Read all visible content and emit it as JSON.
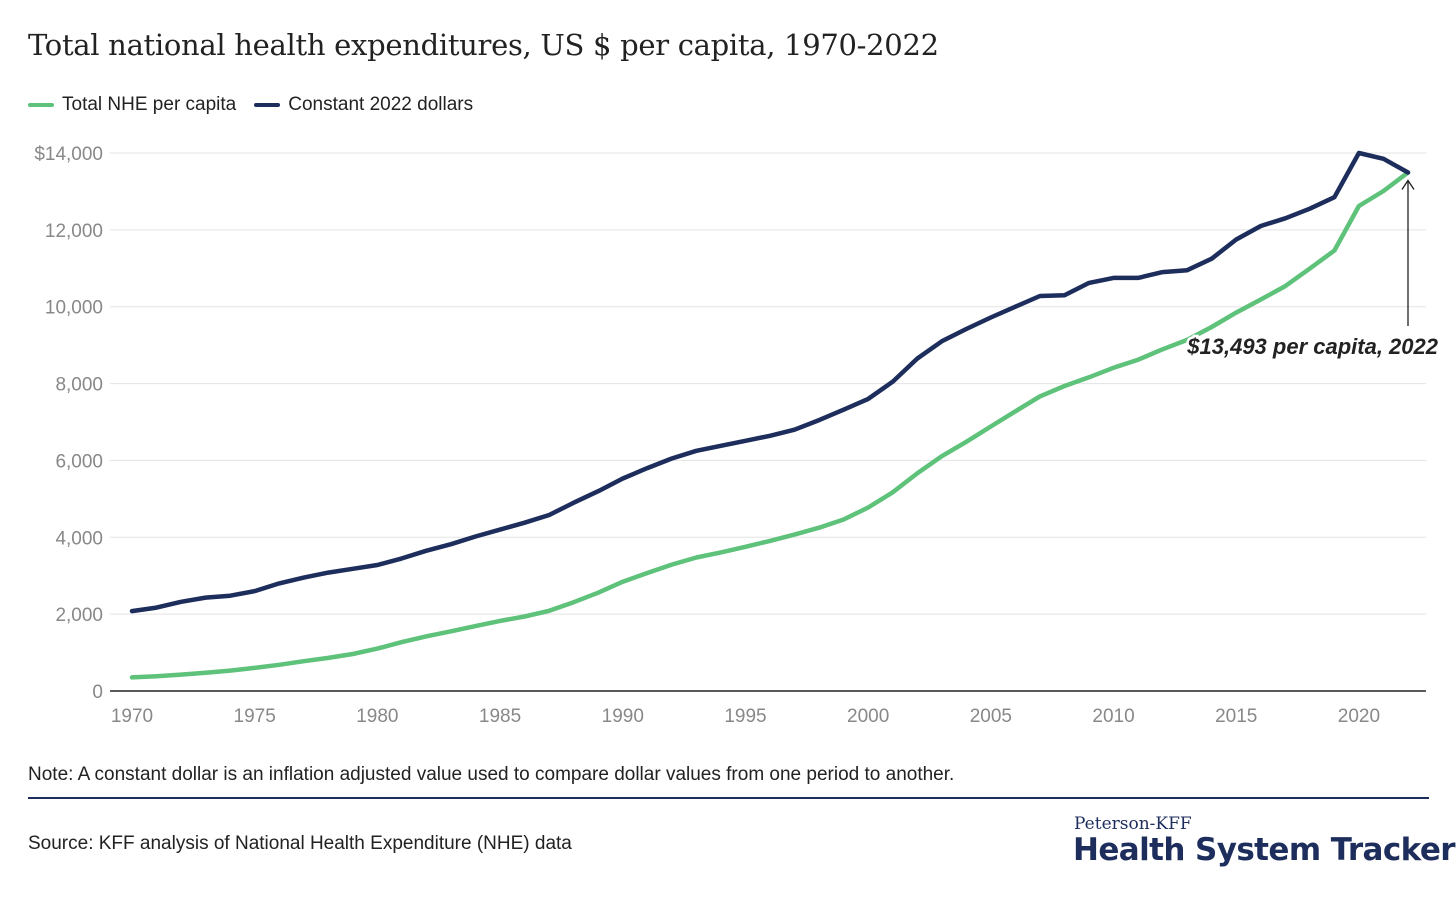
{
  "title": "Total national health expenditures, US $ per capita, 1970-2022",
  "note": "Note: A constant dollar is an inflation adjusted value used to compare dollar values from one period to another.",
  "source": "Source: KFF analysis of National Health Expenditure (NHE) data",
  "brand": {
    "top": "Peterson-KFF",
    "main": "Health System Tracker"
  },
  "colors": {
    "nominal": "#5ec27a",
    "constant": "#1d2d5c",
    "grid": "#e3e3e3",
    "axis": "#222222",
    "tick": "#888888"
  },
  "chart_data": {
    "type": "line",
    "title": "Total national health expenditures, US $ per capita, 1970-2022",
    "xlabel": "",
    "ylabel": "",
    "xlim": [
      1970,
      2022
    ],
    "ylim": [
      0,
      14000
    ],
    "yticks": [
      0,
      2000,
      4000,
      6000,
      8000,
      10000,
      12000,
      14000
    ],
    "ytick_labels": [
      "0",
      "2,000",
      "4,000",
      "6,000",
      "8,000",
      "10,000",
      "12,000",
      "$14,000"
    ],
    "xticks": [
      1970,
      1975,
      1980,
      1985,
      1990,
      1995,
      2000,
      2005,
      2010,
      2015,
      2020
    ],
    "xtick_labels": [
      "1970",
      "1975",
      "1980",
      "1985",
      "1990",
      "1995",
      "2000",
      "2005",
      "2010",
      "2015",
      "2020"
    ],
    "grid": true,
    "legend_position": "top-left",
    "x": [
      1970,
      1971,
      1972,
      1973,
      1974,
      1975,
      1976,
      1977,
      1978,
      1979,
      1980,
      1981,
      1982,
      1983,
      1984,
      1985,
      1986,
      1987,
      1988,
      1989,
      1990,
      1991,
      1992,
      1993,
      1994,
      1995,
      1996,
      1997,
      1998,
      1999,
      2000,
      2001,
      2002,
      2003,
      2004,
      2005,
      2006,
      2007,
      2008,
      2009,
      2010,
      2011,
      2012,
      2013,
      2014,
      2015,
      2016,
      2017,
      2018,
      2019,
      2020,
      2021,
      2022
    ],
    "series": [
      {
        "name": "Total NHE per capita",
        "color": "#5ec27a",
        "values": [
          353,
          384,
          428,
          474,
          530,
          601,
          683,
          776,
          861,
          964,
          1103,
          1272,
          1424,
          1553,
          1689,
          1825,
          1938,
          2087,
          2311,
          2559,
          2843,
          3071,
          3290,
          3473,
          3607,
          3753,
          3906,
          4071,
          4249,
          4463,
          4776,
          5170,
          5663,
          6109,
          6485,
          6883,
          7279,
          7665,
          7937,
          8162,
          8410,
          8622,
          8893,
          9136,
          9471,
          9848,
          10189,
          10537,
          10991,
          11462,
          12622,
          13012,
          13493
        ]
      },
      {
        "name": "Constant 2022 dollars",
        "color": "#1d2d5c",
        "values": [
          2080,
          2170,
          2320,
          2430,
          2480,
          2600,
          2800,
          2950,
          3080,
          3180,
          3280,
          3450,
          3650,
          3820,
          4020,
          4200,
          4380,
          4580,
          4900,
          5200,
          5530,
          5800,
          6050,
          6250,
          6380,
          6510,
          6640,
          6800,
          7050,
          7320,
          7600,
          8050,
          8650,
          9100,
          9420,
          9720,
          10000,
          10280,
          10300,
          10620,
          10750,
          10750,
          10900,
          10950,
          11250,
          11750,
          12100,
          12300,
          12550,
          12850,
          14000,
          13850,
          13493
        ]
      }
    ],
    "annotation": {
      "text": "$13,493 per capita, 2022",
      "x": 2022,
      "y": 13493
    }
  }
}
